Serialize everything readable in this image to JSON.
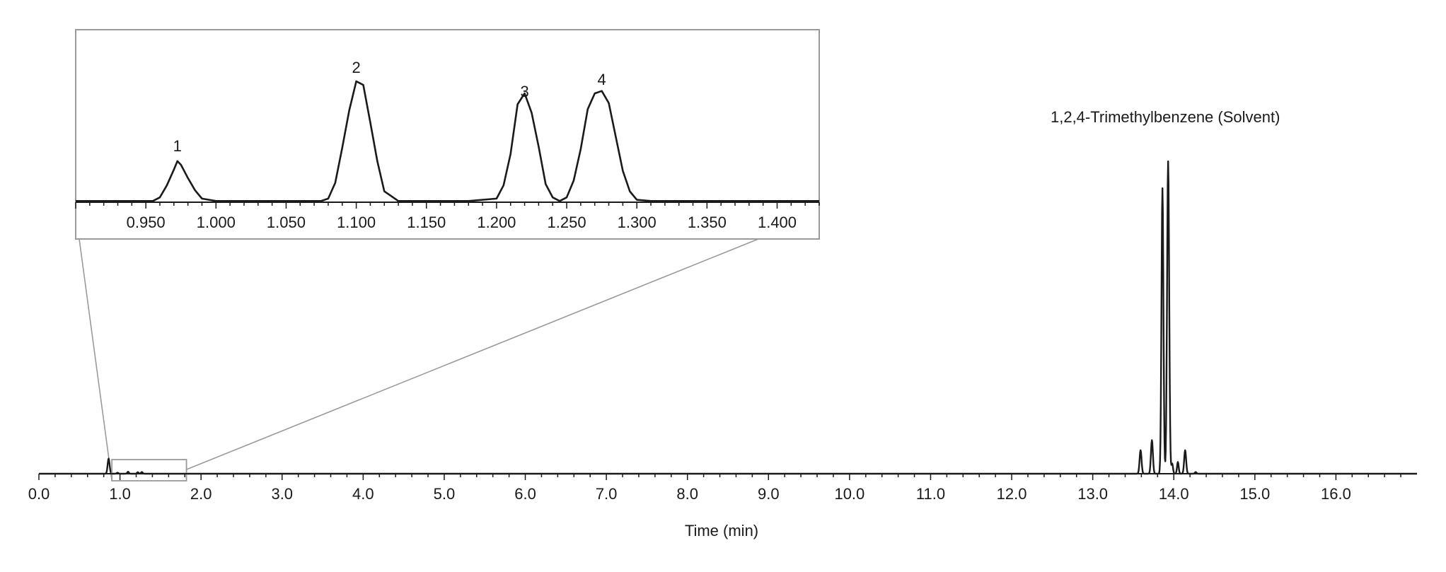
{
  "chart_data": [
    {
      "id": "main",
      "type": "line",
      "title": "",
      "xlabel": "Time (min)",
      "ylabel": "",
      "xlim": [
        0.0,
        17.0
      ],
      "ylim": [
        0,
        100
      ],
      "x_ticks": [
        "0.0",
        "1.0",
        "2.0",
        "3.0",
        "4.0",
        "5.0",
        "6.0",
        "7.0",
        "8.0",
        "9.0",
        "10.0",
        "11.0",
        "12.0",
        "13.0",
        "14.0",
        "15.0",
        "16.0"
      ],
      "grid": false,
      "annotations": [
        {
          "text": "1,2,4-Trimethylbenzene (Solvent)",
          "x": 13.93,
          "y": 100
        }
      ],
      "zoom_region": {
        "x": [
          0.9,
          1.82
        ]
      },
      "series": [
        {
          "color": "#1a1a1a",
          "peaks": [
            {
              "x": 0.86,
              "height": 4.5,
              "width": 0.012
            },
            {
              "x": 0.97,
              "height": 0.3,
              "width": 0.01
            },
            {
              "x": 1.1,
              "height": 0.6,
              "width": 0.01
            },
            {
              "x": 1.22,
              "height": 0.45,
              "width": 0.01
            },
            {
              "x": 1.27,
              "height": 0.5,
              "width": 0.01
            },
            {
              "x": 13.59,
              "height": 7.0,
              "width": 0.012
            },
            {
              "x": 13.73,
              "height": 10.0,
              "width": 0.012
            },
            {
              "x": 13.86,
              "height": 85.0,
              "width": 0.012
            },
            {
              "x": 13.93,
              "height": 93.0,
              "width": 0.013
            },
            {
              "x": 13.98,
              "height": 3.0,
              "width": 0.01
            },
            {
              "x": 14.05,
              "height": 3.5,
              "width": 0.01
            },
            {
              "x": 14.14,
              "height": 7.0,
              "width": 0.012
            },
            {
              "x": 14.27,
              "height": 0.5,
              "width": 0.01
            }
          ]
        }
      ]
    },
    {
      "id": "inset",
      "type": "line",
      "title": "",
      "xlabel": "",
      "ylabel": "",
      "xlim": [
        0.9,
        1.43
      ],
      "ylim": [
        0,
        100
      ],
      "x_ticks": [
        "0.950",
        "1.000",
        "1.050",
        "1.100",
        "1.150",
        "1.200",
        "1.250",
        "1.300",
        "1.350",
        "1.400"
      ],
      "grid": false,
      "peak_labels": [
        {
          "text": "1",
          "x": 0.9725,
          "y": 35
        },
        {
          "text": "2",
          "x": 1.1,
          "y": 100
        },
        {
          "text": "3",
          "x": 1.22,
          "y": 80
        },
        {
          "text": "4",
          "x": 1.275,
          "y": 90
        }
      ],
      "series": [
        {
          "color": "#1a1a1a",
          "x": [
            0.9,
            0.92,
            0.94,
            0.955,
            0.96,
            0.965,
            0.97,
            0.9725,
            0.975,
            0.98,
            0.985,
            0.99,
            1.0,
            1.02,
            1.04,
            1.06,
            1.075,
            1.08,
            1.085,
            1.09,
            1.095,
            1.1,
            1.105,
            1.11,
            1.115,
            1.12,
            1.13,
            1.15,
            1.18,
            1.2,
            1.205,
            1.21,
            1.215,
            1.22,
            1.225,
            1.23,
            1.235,
            1.24,
            1.245,
            1.25,
            1.255,
            1.26,
            1.265,
            1.27,
            1.275,
            1.28,
            1.285,
            1.29,
            1.295,
            1.3,
            1.31,
            1.35,
            1.4,
            1.43
          ],
          "y": [
            1,
            1,
            1,
            1,
            4,
            14,
            27,
            34,
            31,
            20,
            10,
            3,
            1,
            1,
            1,
            1,
            1,
            3,
            16,
            45,
            76,
            100,
            97,
            66,
            34,
            9,
            1,
            1,
            1,
            3,
            14,
            40,
            81,
            90,
            74,
            46,
            15,
            4,
            1,
            4,
            18,
            44,
            77,
            90,
            92,
            82,
            54,
            26,
            9,
            2,
            1,
            1,
            1,
            1
          ]
        }
      ]
    }
  ]
}
